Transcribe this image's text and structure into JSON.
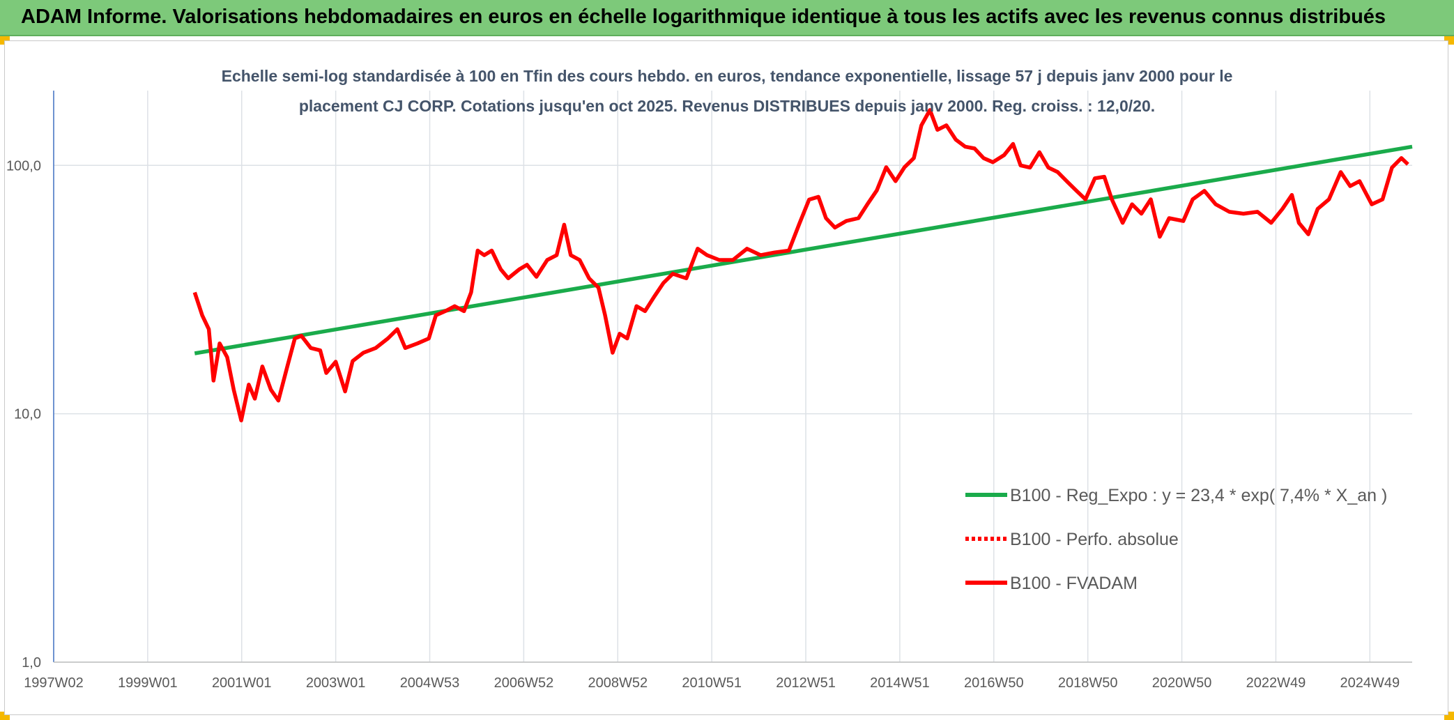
{
  "header": {
    "title": "ADAM Informe. Valorisations hebdomadaires en euros en échelle logarithmique identique à tous les actifs avec les revenus connus distribués"
  },
  "chart_data": {
    "type": "line",
    "title": "Echelle semi-log standardisée à 100 en Tfin des cours hebdo. en euros, tendance exponentielle, lissage 57 j depuis janv 2000 pour le placement CJ CORP. Cotations jusqu'en oct 2025. Revenus DISTRIBUES depuis janv 2000. Reg. croiss. : 12,0/20.",
    "log_scale": true,
    "grid": true,
    "legend": "lower right",
    "xlim": [
      1997,
      2025.9
    ],
    "xticks": [
      {
        "value": 1997,
        "label": "1997W02"
      },
      {
        "value": 1999,
        "label": "1999W01"
      },
      {
        "value": 2001,
        "label": "2001W01"
      },
      {
        "value": 2003,
        "label": "2003W01"
      },
      {
        "value": 2005,
        "label": "2004W53"
      },
      {
        "value": 2007,
        "label": "2006W52"
      },
      {
        "value": 2009,
        "label": "2008W52"
      },
      {
        "value": 2011,
        "label": "2010W51"
      },
      {
        "value": 2013,
        "label": "2012W51"
      },
      {
        "value": 2015,
        "label": "2014W51"
      },
      {
        "value": 2017,
        "label": "2016W50"
      },
      {
        "value": 2019,
        "label": "2018W50"
      },
      {
        "value": 2021,
        "label": "2020W50"
      },
      {
        "value": 2023,
        "label": "2022W49"
      },
      {
        "value": 2025,
        "label": "2024W49"
      }
    ],
    "ylim": [
      1,
      200
    ],
    "yticks": [
      {
        "value": 1,
        "label": "1,0"
      },
      {
        "value": 10,
        "label": "10,0"
      },
      {
        "value": 100,
        "label": "100,0"
      }
    ],
    "series": [
      {
        "name": "B100 - Reg_Expo : y = 23,4 * exp( 7,4% *  X_an )",
        "color": "#1aab4b",
        "dash": "solid",
        "x": [
          2000.0,
          2025.9
        ],
        "values": [
          17.5,
          119
        ]
      },
      {
        "name": "B100 - Perfo. absolue",
        "color": "#ff0000",
        "dash": "dotted",
        "x": [],
        "values": []
      },
      {
        "name": "B100 - FVADAM",
        "color": "#ff0000",
        "dash": "solid",
        "x": [
          2000.0,
          2000.16,
          2000.3,
          2000.4,
          2000.53,
          2000.69,
          2000.83,
          2000.99,
          2001.15,
          2001.28,
          2001.44,
          2001.62,
          2001.78,
          2001.97,
          2002.13,
          2002.27,
          2002.47,
          2002.67,
          2002.8,
          2003.0,
          2003.2,
          2003.36,
          2003.59,
          2003.85,
          2004.11,
          2004.31,
          2004.48,
          2004.74,
          2004.98,
          2005.13,
          2005.33,
          2005.53,
          2005.73,
          2005.88,
          2006.02,
          2006.16,
          2006.32,
          2006.51,
          2006.67,
          2006.91,
          2007.07,
          2007.27,
          2007.5,
          2007.7,
          2007.86,
          2008.0,
          2008.19,
          2008.39,
          2008.59,
          2008.73,
          2008.89,
          2009.04,
          2009.2,
          2009.4,
          2009.58,
          2009.77,
          2009.97,
          2010.17,
          2010.46,
          2010.7,
          2010.9,
          2011.16,
          2011.45,
          2011.75,
          2012.04,
          2012.34,
          2012.64,
          2012.87,
          2013.07,
          2013.27,
          2013.43,
          2013.62,
          2013.86,
          2014.12,
          2014.31,
          2014.51,
          2014.71,
          2014.91,
          2015.1,
          2015.3,
          2015.46,
          2015.64,
          2015.8,
          2015.99,
          2016.19,
          2016.39,
          2016.59,
          2016.78,
          2016.98,
          2017.22,
          2017.41,
          2017.57,
          2017.77,
          2017.97,
          2018.16,
          2018.36,
          2018.56,
          2018.76,
          2018.95,
          2019.15,
          2019.35,
          2019.51,
          2019.74,
          2019.94,
          2020.14,
          2020.34,
          2020.53,
          2020.73,
          2021.03,
          2021.23,
          2021.48,
          2021.72,
          2022.01,
          2022.31,
          2022.61,
          2022.9,
          2023.14,
          2023.34,
          2023.49,
          2023.69,
          2023.89,
          2024.13,
          2024.38,
          2024.58,
          2024.78,
          2025.04,
          2025.27,
          2025.47,
          2025.67,
          2025.81
        ],
        "values": [
          30.8,
          24.9,
          21.9,
          13.6,
          19.2,
          16.9,
          12.5,
          9.4,
          13.1,
          11.5,
          15.5,
          12.5,
          11.3,
          15.5,
          20.1,
          20.6,
          18.4,
          18.0,
          14.6,
          16.2,
          12.3,
          16.3,
          17.6,
          18.4,
          20.1,
          21.9,
          18.4,
          19.2,
          20.1,
          24.9,
          25.9,
          27.1,
          25.9,
          30.8,
          45.4,
          43.5,
          45.4,
          38.2,
          35.1,
          38.2,
          39.8,
          35.6,
          41.6,
          43.5,
          57.7,
          43.5,
          41.6,
          35.1,
          32.2,
          24.9,
          17.6,
          21.0,
          20.1,
          27.1,
          25.9,
          29.5,
          33.6,
          36.6,
          35.1,
          46.2,
          43.5,
          41.6,
          41.6,
          46.2,
          43.5,
          44.6,
          45.4,
          58.7,
          72.8,
          74.7,
          61.3,
          56.2,
          59.7,
          61.3,
          69.7,
          79.3,
          98.3,
          86.4,
          98.3,
          107,
          145,
          167,
          139,
          145,
          127,
          119,
          117,
          107,
          103,
          110,
          122,
          100,
          98,
          113,
          98,
          94,
          86,
          79,
          73,
          88.7,
          90,
          73,
          58.7,
          69.7,
          63.9,
          73,
          51.6,
          61.3,
          59.7,
          73,
          79,
          69.7,
          65,
          63.9,
          65,
          58.7,
          66.8,
          76.0,
          58.7,
          52.8,
          66.8,
          73,
          94,
          82.5,
          86.4,
          69.7,
          73,
          98,
          107,
          101
        ]
      }
    ]
  }
}
